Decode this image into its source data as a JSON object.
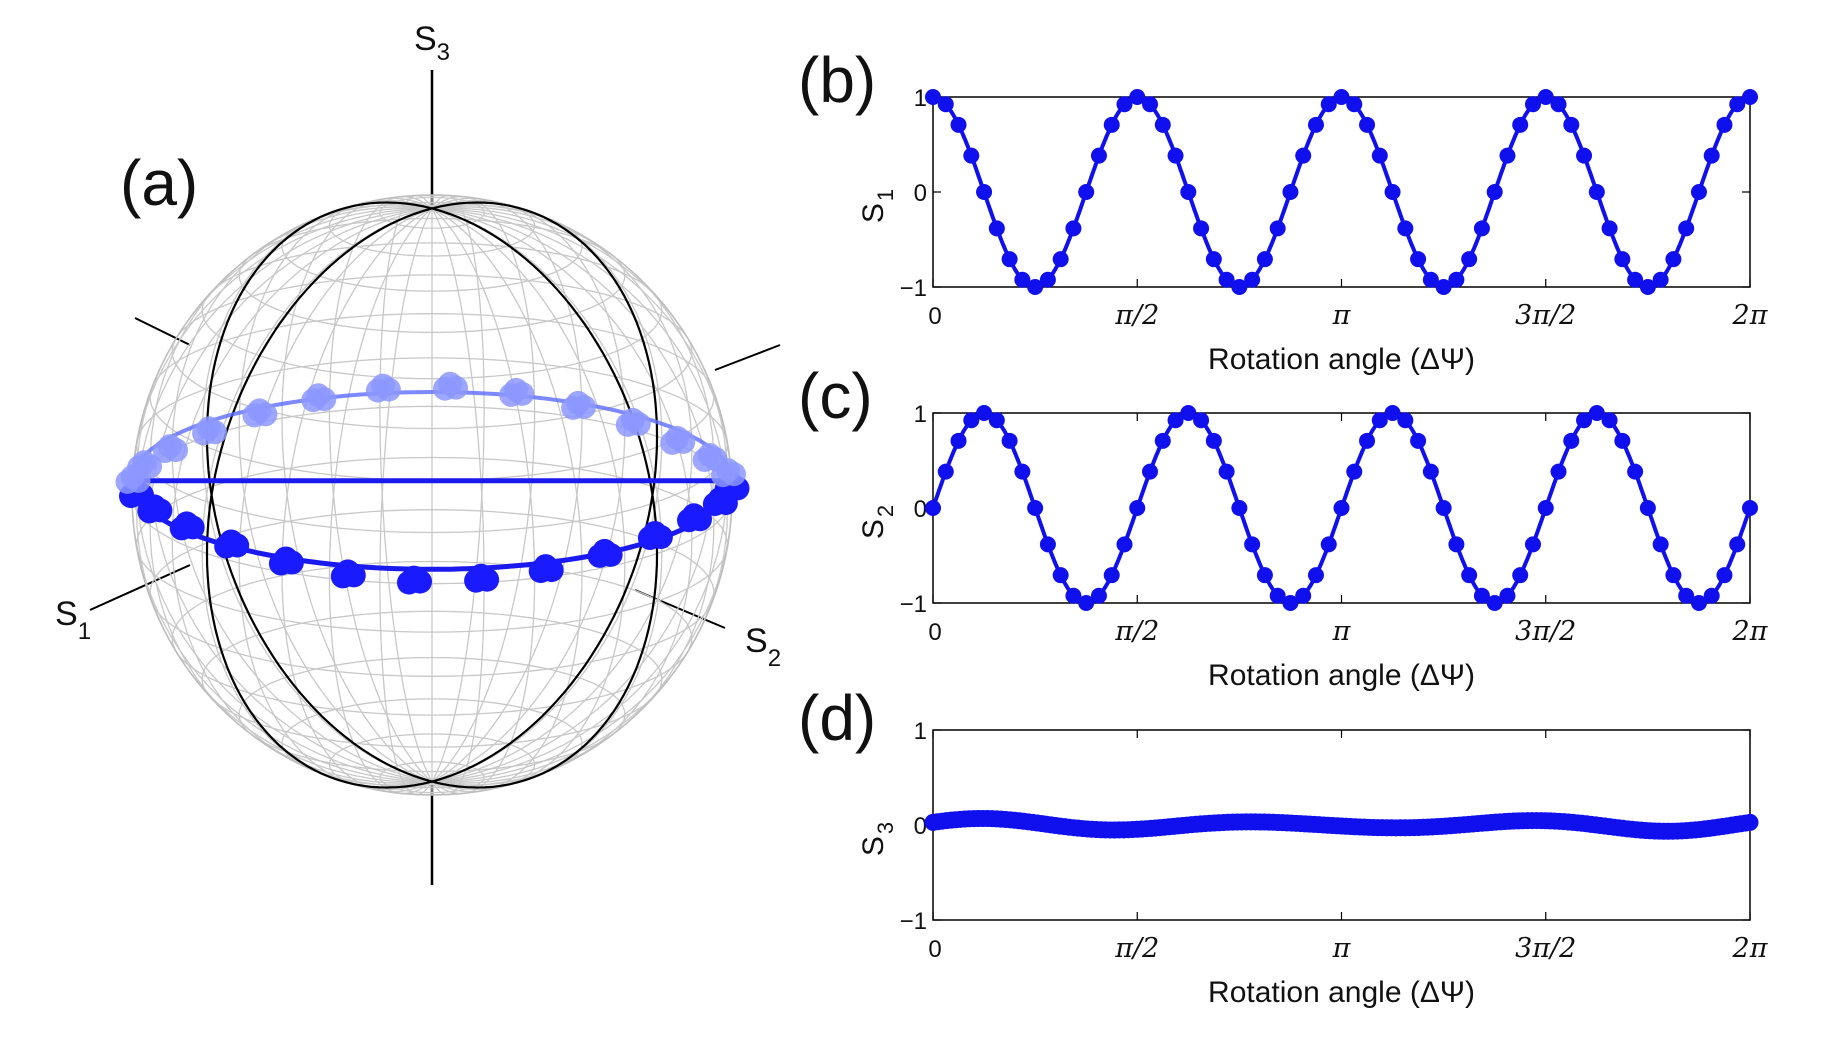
{
  "figure": {
    "panel_labels": [
      "(a)",
      "(b)",
      "(c)",
      "(d)"
    ]
  },
  "sphere": {
    "axis_names": {
      "s1": "S",
      "s1_sub": "1",
      "s2": "S",
      "s2_sub": "2",
      "s3": "S",
      "s3_sub": "3"
    },
    "colors": {
      "grid": "#c8c8c8",
      "meridian": "#000000",
      "ring": "#5c6cff",
      "point_front": "#1a1aff",
      "point_back": "#8c98ff"
    }
  },
  "chart_data": [
    {
      "type": "line",
      "panel": "(b)",
      "ylabel": "S",
      "ylabel_sub": "1",
      "xlabel": "Rotation angle (ΔΨ)",
      "xlim": [
        0,
        6.283185
      ],
      "ylim": [
        -1,
        1
      ],
      "xticks": [
        0,
        1.570796,
        3.141593,
        4.712389,
        6.283185
      ],
      "xtick_labels": [
        "0",
        "π/2",
        "π",
        "3π/2",
        "2π"
      ],
      "yticks": [
        -1,
        0,
        1
      ],
      "ytick_labels": [
        "−1",
        "0",
        "1"
      ],
      "series": [
        {
          "name": "S1",
          "formula": "cos(4x)",
          "points": 65,
          "color": "#1010ee"
        }
      ]
    },
    {
      "type": "line",
      "panel": "(c)",
      "ylabel": "S",
      "ylabel_sub": "2",
      "xlabel": "Rotation angle (ΔΨ)",
      "xlim": [
        0,
        6.283185
      ],
      "ylim": [
        -1,
        1
      ],
      "xticks": [
        0,
        1.570796,
        3.141593,
        4.712389,
        6.283185
      ],
      "xtick_labels": [
        "0",
        "π/2",
        "π",
        "3π/2",
        "2π"
      ],
      "yticks": [
        -1,
        0,
        1
      ],
      "ytick_labels": [
        "−1",
        "0",
        "1"
      ],
      "series": [
        {
          "name": "S2",
          "formula": "sin(4x)",
          "points": 65,
          "color": "#1010ee"
        }
      ]
    },
    {
      "type": "line",
      "panel": "(d)",
      "ylabel": "S",
      "ylabel_sub": "3",
      "xlabel": "Rotation angle (ΔΨ)",
      "xlim": [
        0,
        6.283185
      ],
      "ylim": [
        -1,
        1
      ],
      "xticks": [
        0,
        1.570796,
        3.141593,
        4.712389,
        6.283185
      ],
      "xtick_labels": [
        "0",
        "π/2",
        "π",
        "3π/2",
        "2π"
      ],
      "yticks": [
        -1,
        0,
        1
      ],
      "ytick_labels": [
        "−1",
        "0",
        "1"
      ],
      "series": [
        {
          "name": "S3",
          "formula": "≈0 with small ±0.07 ripple",
          "points": 181,
          "color": "#1010ee"
        }
      ]
    }
  ]
}
